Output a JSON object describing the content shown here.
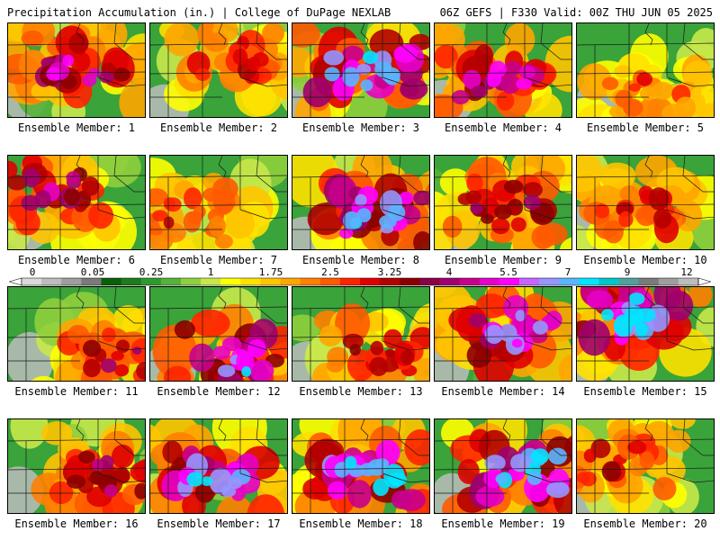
{
  "header": {
    "title": "Precipitation Accumulation (in.) | College of DuPage NEXLAB",
    "run_info": "06Z GEFS | F330 Valid: 00Z THU JUN 05 2025"
  },
  "panels": [
    {
      "label": "Ensemble Member: 1",
      "intensity": 0.6,
      "hotspot": [
        0.5,
        0.45
      ],
      "wet_corner": "se"
    },
    {
      "label": "Ensemble Member: 2",
      "intensity": 0.4,
      "hotspot": [
        0.6,
        0.35
      ],
      "wet_corner": "ne"
    },
    {
      "label": "Ensemble Member: 3",
      "intensity": 0.8,
      "hotspot": [
        0.55,
        0.5
      ],
      "wet_corner": "se"
    },
    {
      "label": "Ensemble Member: 4",
      "intensity": 0.6,
      "hotspot": [
        0.45,
        0.55
      ],
      "wet_corner": "c"
    },
    {
      "label": "Ensemble Member: 5",
      "intensity": 0.3,
      "hotspot": [
        0.55,
        0.7
      ],
      "wet_corner": "s"
    },
    {
      "label": "Ensemble Member: 6",
      "intensity": 0.55,
      "hotspot": [
        0.35,
        0.4
      ],
      "wet_corner": "se"
    },
    {
      "label": "Ensemble Member: 7",
      "intensity": 0.35,
      "hotspot": [
        0.3,
        0.6
      ],
      "wet_corner": "sw"
    },
    {
      "label": "Ensemble Member: 8",
      "intensity": 0.75,
      "hotspot": [
        0.6,
        0.6
      ],
      "wet_corner": "se"
    },
    {
      "label": "Ensemble Member: 9",
      "intensity": 0.5,
      "hotspot": [
        0.5,
        0.55
      ],
      "wet_corner": "c"
    },
    {
      "label": "Ensemble Member: 10",
      "intensity": 0.4,
      "hotspot": [
        0.45,
        0.55
      ],
      "wet_corner": "c"
    },
    {
      "label": "Ensemble Member: 11",
      "intensity": 0.45,
      "hotspot": [
        0.8,
        0.7
      ],
      "wet_corner": "se"
    },
    {
      "label": "Ensemble Member: 12",
      "intensity": 0.7,
      "hotspot": [
        0.6,
        0.75
      ],
      "wet_corner": "s"
    },
    {
      "label": "Ensemble Member: 13",
      "intensity": 0.45,
      "hotspot": [
        0.65,
        0.7
      ],
      "wet_corner": "se"
    },
    {
      "label": "Ensemble Member: 14",
      "intensity": 0.7,
      "hotspot": [
        0.6,
        0.45
      ],
      "wet_corner": "c"
    },
    {
      "label": "Ensemble Member: 15",
      "intensity": 0.85,
      "hotspot": [
        0.45,
        0.3
      ],
      "wet_corner": "n"
    },
    {
      "label": "Ensemble Member: 16",
      "intensity": 0.55,
      "hotspot": [
        0.7,
        0.6
      ],
      "wet_corner": "se"
    },
    {
      "label": "Ensemble Member: 17",
      "intensity": 0.75,
      "hotspot": [
        0.5,
        0.6
      ],
      "wet_corner": "s"
    },
    {
      "label": "Ensemble Member: 18",
      "intensity": 0.8,
      "hotspot": [
        0.55,
        0.55
      ],
      "wet_corner": "se"
    },
    {
      "label": "Ensemble Member: 19",
      "intensity": 0.8,
      "hotspot": [
        0.65,
        0.55
      ],
      "wet_corner": "c"
    },
    {
      "label": "Ensemble Member: 20",
      "intensity": 0.4,
      "hotspot": [
        0.3,
        0.45
      ],
      "wet_corner": "w"
    }
  ],
  "colorbar": {
    "tick_labels": [
      "0",
      "0.05",
      "0.25",
      "1",
      "1.75",
      "2.5",
      "3.25",
      "4",
      "5.5",
      "7",
      "9",
      "12"
    ],
    "colors": [
      "#d9d9d9",
      "#bdbdbd",
      "#9e9e9e",
      "#7a7a7a",
      "#0b5f0b",
      "#1e7b1e",
      "#2e9a2e",
      "#56b33a",
      "#8fcf3c",
      "#c8e84a",
      "#ffff00",
      "#ffe100",
      "#ffc400",
      "#ffa500",
      "#ff8000",
      "#ff5a00",
      "#ff2400",
      "#e00000",
      "#b40000",
      "#8c0000",
      "#8b0046",
      "#a0006e",
      "#c8008c",
      "#e600c8",
      "#ff00ff",
      "#c864ff",
      "#9696ff",
      "#5ab4ff",
      "#00e6ff",
      "#00c8c8",
      "#50a0a0",
      "#7a7a7a",
      "#9e9e9e",
      "#bdbdbd"
    ]
  },
  "colors": {
    "border": "#000000",
    "state_lines": "#1a1a1a"
  }
}
